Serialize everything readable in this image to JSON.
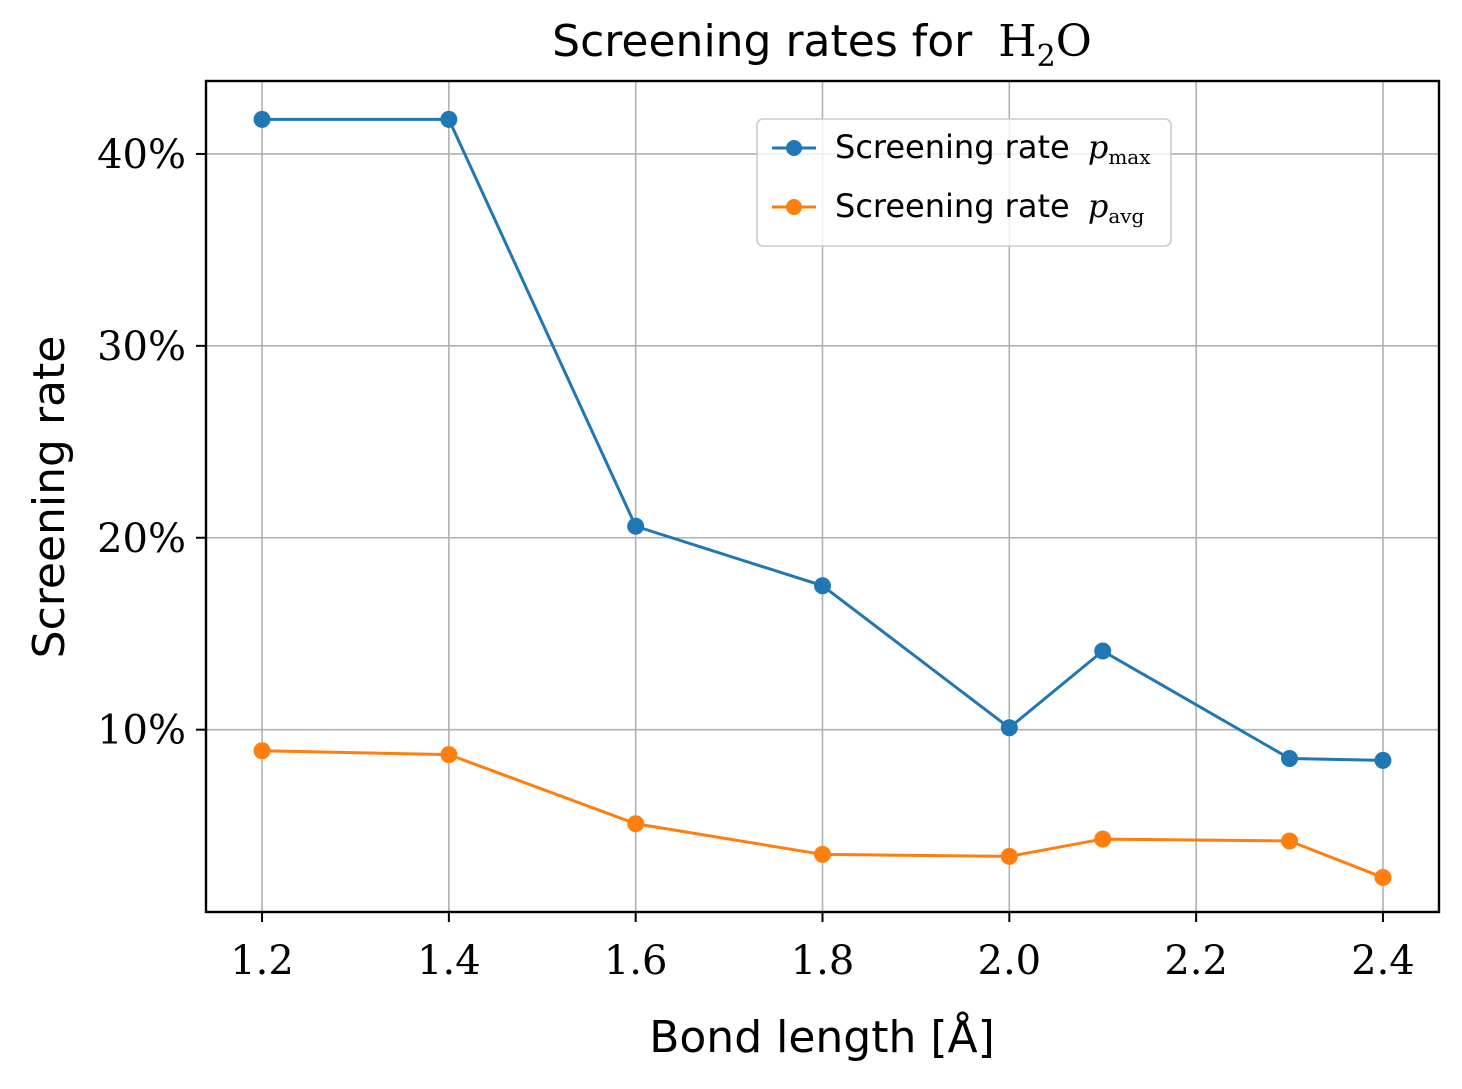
{
  "chart_data": {
    "type": "line",
    "title": "Screening rates for",
    "title_formula": {
      "main": "H",
      "sub": "2",
      "tail": "O"
    },
    "xlabel": "Bond length [Å]",
    "ylabel": "Screening rate",
    "xlim": [
      1.14,
      2.46
    ],
    "ylim": [
      0.5,
      43.8
    ],
    "xticks": [
      1.2,
      1.4,
      1.6,
      1.8,
      2.0,
      2.2,
      2.4
    ],
    "xtick_labels": [
      "1.2",
      "1.4",
      "1.6",
      "1.8",
      "2.0",
      "2.2",
      "2.4"
    ],
    "yticks": [
      10,
      20,
      30,
      40
    ],
    "ytick_labels": [
      "10%",
      "20%",
      "30%",
      "40%"
    ],
    "grid": true,
    "legend_position": "top-right",
    "x": [
      1.2,
      1.4,
      1.6,
      1.8,
      2.0,
      2.1,
      2.3,
      2.4
    ],
    "series": [
      {
        "name": "Screening rate p_max",
        "label_text": "Screening rate",
        "label_symbol": "p",
        "label_sub": "max",
        "color": "#1f77b4",
        "values": [
          41.8,
          41.8,
          20.6,
          17.5,
          10.1,
          14.1,
          8.5,
          8.4
        ]
      },
      {
        "name": "Screening rate p_avg",
        "label_text": "Screening rate",
        "label_symbol": "p",
        "label_sub": "avg",
        "color": "#ff7f0e",
        "values": [
          8.9,
          8.7,
          5.1,
          3.5,
          3.4,
          4.3,
          4.2,
          2.3
        ]
      }
    ]
  }
}
